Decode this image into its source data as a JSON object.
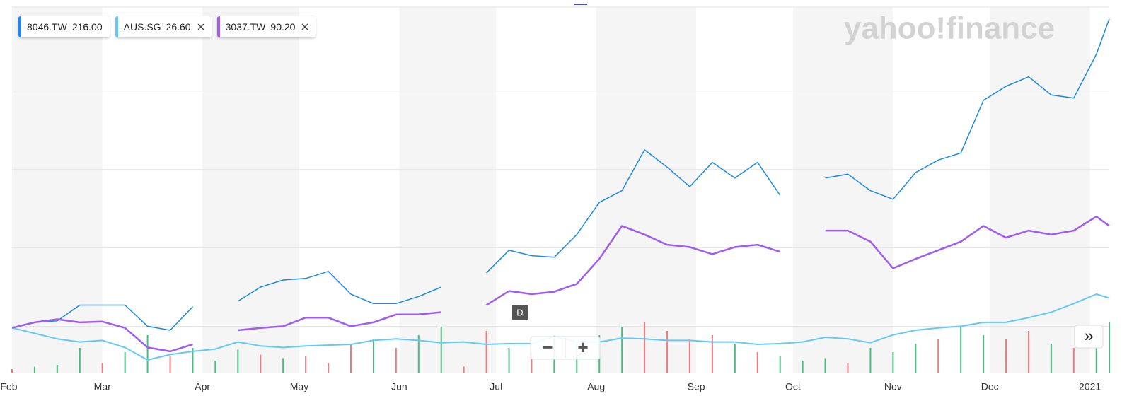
{
  "chart_data": {
    "type": "line",
    "watermark": "yahoo!finance",
    "controls": {
      "interval": "D",
      "zoom_out": "−",
      "zoom_in": "+",
      "expand": "»"
    },
    "xlim": [
      32,
      372
    ],
    "xticks": [
      {
        "value": 31,
        "label": "Feb"
      },
      {
        "value": 60,
        "label": "Mar"
      },
      {
        "value": 91,
        "label": "Apr"
      },
      {
        "value": 121,
        "label": "May"
      },
      {
        "value": 152,
        "label": "Jun"
      },
      {
        "value": 182,
        "label": "Jul"
      },
      {
        "value": 213,
        "label": "Aug"
      },
      {
        "value": 244,
        "label": "Sep"
      },
      {
        "value": 274,
        "label": "Oct"
      },
      {
        "value": 305,
        "label": "Nov"
      },
      {
        "value": 335,
        "label": "Dec"
      },
      {
        "value": 366,
        "label": "2021"
      }
    ],
    "month_shading": true,
    "ylim": [
      -60,
      407
    ],
    "ygrid": [
      0,
      100,
      200,
      300
    ],
    "x": [
      32,
      39,
      46,
      53,
      60,
      67,
      74,
      81,
      88,
      95,
      102,
      109,
      116,
      123,
      130,
      137,
      144,
      151,
      158,
      165,
      172,
      179,
      186,
      193,
      200,
      207,
      214,
      221,
      228,
      235,
      242,
      249,
      256,
      263,
      270,
      277,
      284,
      291,
      298,
      305,
      312,
      319,
      326,
      333,
      340,
      347,
      354,
      361,
      368,
      372
    ],
    "series": [
      {
        "name": "8046.TW",
        "color": "#1e88e5",
        "removable": false,
        "last": {
          "value": 216,
          "label": "216.00"
        },
        "width": 1.5,
        "values": [
          -2,
          5,
          7,
          27,
          27,
          27,
          0,
          -5,
          25,
          null,
          32,
          50,
          59,
          61,
          70,
          41,
          29,
          29,
          38,
          50,
          null,
          68,
          97,
          90,
          88,
          117,
          158,
          173,
          225,
          203,
          178,
          209,
          189,
          209,
          167,
          null,
          189,
          194,
          173,
          162,
          196,
          212,
          221,
          288,
          306,
          318,
          295,
          291,
          347,
          392
        ]
      },
      {
        "name": "AUS.SG",
        "color": "#64c8f9",
        "removable": true,
        "last": {
          "value": 26.6,
          "label": "26.60"
        },
        "width": 2,
        "values": [
          -2,
          -9,
          -16,
          -20,
          -18,
          -27,
          -43,
          -36,
          -32,
          -29,
          -20,
          -25,
          -27,
          -25,
          -24,
          -23,
          -18,
          -16,
          -18,
          -21,
          -20,
          -23,
          -22,
          -22,
          -13,
          -20,
          -20,
          -15,
          -16,
          -18,
          -18,
          -20,
          -20,
          -23,
          -22,
          -20,
          -14,
          -16,
          -21,
          -11,
          -5,
          -2,
          0,
          5,
          5,
          11,
          18,
          29,
          41,
          36
        ]
      },
      {
        "name": "3037.TW",
        "color": "#a05cf0",
        "removable": true,
        "last": {
          "value": 90.2,
          "label": "90.20"
        },
        "width": 2.5,
        "values": [
          -2,
          5,
          9,
          5,
          6,
          -2,
          -27,
          -32,
          -23,
          null,
          -5,
          -2,
          0,
          11,
          11,
          0,
          5,
          15,
          15,
          18,
          null,
          27,
          45,
          41,
          44,
          54,
          86,
          128,
          117,
          104,
          101,
          92,
          101,
          104,
          95,
          null,
          122,
          122,
          108,
          74,
          86,
          97,
          108,
          128,
          113,
          122,
          117,
          122,
          140,
          128
        ]
      }
    ],
    "volume": {
      "ylim": [
        0,
        100
      ],
      "values": [
        5,
        8,
        10,
        30,
        12,
        25,
        45,
        20,
        30,
        15,
        28,
        22,
        18,
        20,
        12,
        35,
        40,
        30,
        45,
        55,
        8,
        50,
        30,
        25,
        40,
        35,
        45,
        55,
        60,
        50,
        40,
        45,
        35,
        25,
        20,
        15,
        18,
        12,
        30,
        25,
        35,
        40,
        55,
        45,
        40,
        50,
        35,
        30,
        40,
        60
      ],
      "colors": [
        "#f37a7e",
        "#4cbb7f",
        "#4cbb7f",
        "#4cbb7f",
        "#f37a7e",
        "#4cbb7f",
        "#4cbb7f",
        "#f37a7e",
        "#4cbb7f",
        "#4cbb7f",
        "#4cbb7f",
        "#f37a7e",
        "#4cbb7f",
        "#f37a7e",
        "#f37a7e",
        "#f37a7e",
        "#4cbb7f",
        "#f37a7e",
        "#4cbb7f",
        "#4cbb7f",
        "#f37a7e",
        "#f37a7e",
        "#4cbb7f",
        "#f37a7e",
        "#4cbb7f",
        "#4cbb7f",
        "#4cbb7f",
        "#4cbb7f",
        "#f37a7e",
        "#f37a7e",
        "#f37a7e",
        "#f37a7e",
        "#4cbb7f",
        "#f37a7e",
        "#4cbb7f",
        "#4cbb7f",
        "#4cbb7f",
        "#f37a7e",
        "#4cbb7f",
        "#4cbb7f",
        "#4cbb7f",
        "#f37a7e",
        "#4cbb7f",
        "#4cbb7f",
        "#f37a7e",
        "#f37a7e",
        "#4cbb7f",
        "#f37a7e",
        "#4cbb7f",
        "#4cbb7f"
      ]
    }
  }
}
